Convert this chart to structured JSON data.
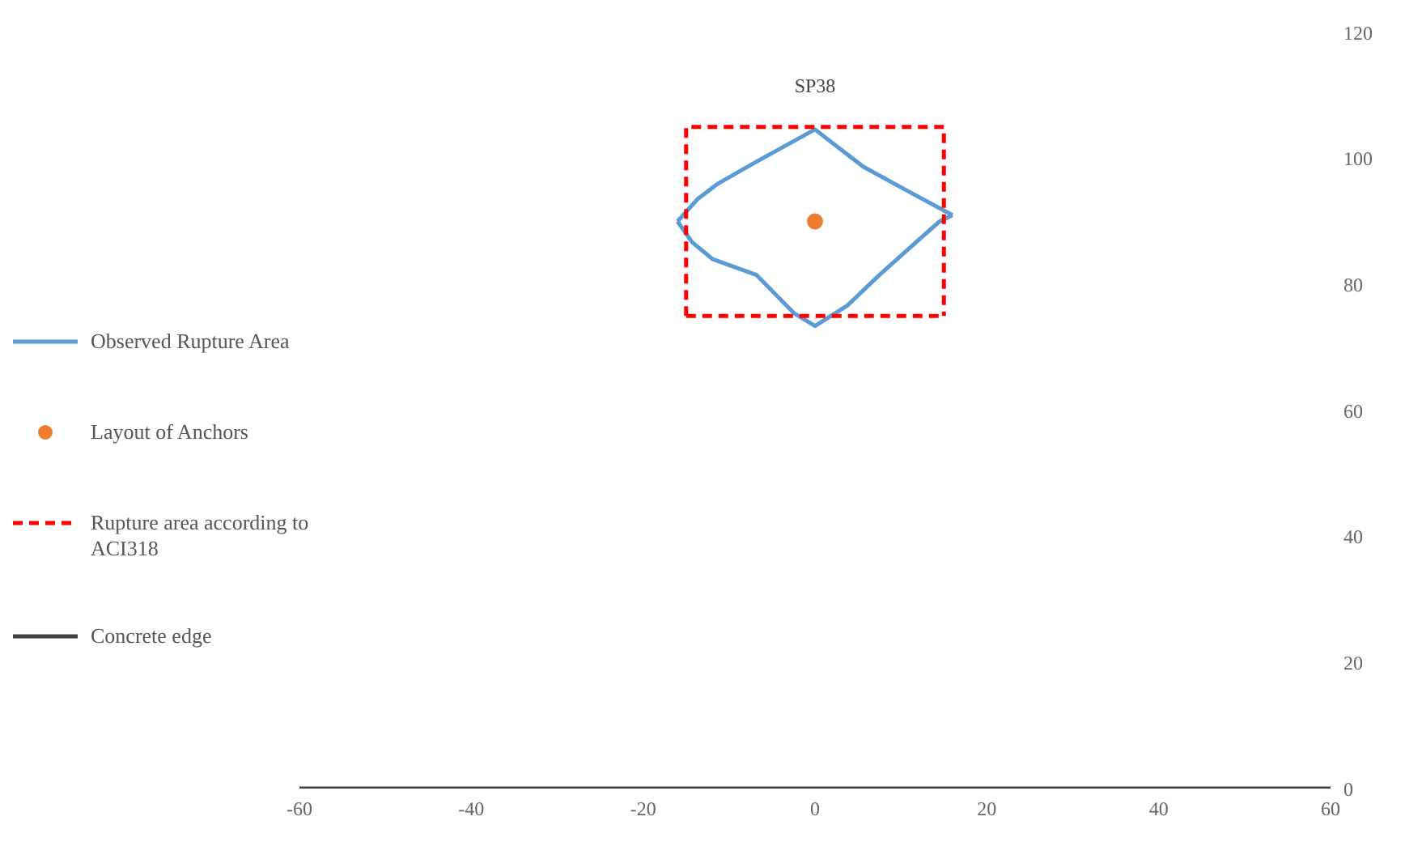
{
  "chart_data": {
    "type": "line",
    "title": "SP38",
    "xlim": [
      -60,
      60
    ],
    "xticks": [
      -60,
      -40,
      -20,
      0,
      20,
      40,
      60
    ],
    "ylim": [
      0,
      120
    ],
    "yticks": [
      0,
      20,
      40,
      60,
      80,
      100,
      120
    ],
    "grid": false,
    "legend": "left",
    "series": [
      {
        "name": "Observed Rupture Area",
        "color": "#5b9bd5",
        "marker": "none",
        "line_style": "solid",
        "x": [
          -16,
          -13.7,
          -11.3,
          -6.8,
          0,
          1.9,
          5.6,
          10.7,
          16
        ],
        "values": [
          90,
          93.5,
          96,
          99.5,
          104.6,
          102.6,
          98.7,
          94.9,
          91
        ]
      },
      {
        "color": "#5b9bd5",
        "marker": "none",
        "line_style": "solid",
        "x": [
          -16,
          -14.3,
          -11.9,
          -6.8,
          -2.4,
          0,
          3.8,
          7.5,
          12,
          14.5,
          16
        ],
        "values": [
          90,
          86.7,
          84,
          81.5,
          75.4,
          73.4,
          76.7,
          81.5,
          87,
          90,
          91
        ]
      },
      {
        "name": "Layout of Anchors",
        "type": "scatter",
        "color": "#ed7d31",
        "marker": "circle",
        "x": [
          0
        ],
        "values": [
          90
        ]
      },
      {
        "name": "Rupture area according to ACI318",
        "color": "#ff0000",
        "marker": "none",
        "line_style": "dashed",
        "x": [
          -15,
          -15,
          15,
          15
        ],
        "values": [
          75,
          105,
          105,
          75
        ]
      },
      {
        "color": "#ff0000",
        "marker": "none",
        "line_style": "dashed",
        "x": [
          -15,
          15
        ],
        "values": [
          75,
          75
        ]
      },
      {
        "name": "Concrete edge",
        "color": "#404040",
        "marker": "none",
        "line_style": "solid",
        "x": [
          -60,
          60
        ],
        "values": [
          0,
          0
        ]
      }
    ]
  }
}
